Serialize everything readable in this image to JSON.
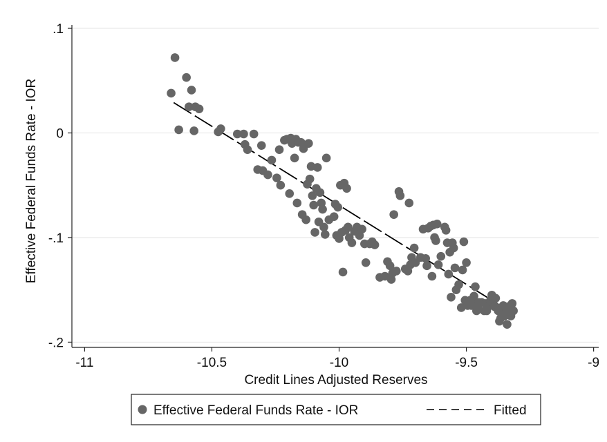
{
  "chart_data": {
    "type": "scatter",
    "xlabel": "Credit Lines Adjusted Reserves",
    "ylabel": "Effective Federal Funds Rate - IOR",
    "xlim": [
      -11.05,
      -8.98
    ],
    "ylim": [
      -0.205,
      0.102
    ],
    "x_ticks": [
      -11,
      -10.5,
      -10,
      -9.5,
      -9
    ],
    "x_tick_labels": [
      "-11",
      "-10.5",
      "-10",
      "-9.5",
      "-9"
    ],
    "y_ticks": [
      0.1,
      0,
      -0.1,
      -0.2
    ],
    "y_tick_labels": [
      ".1",
      "0",
      "-.1",
      "-.2"
    ],
    "grid": true,
    "legend_position": "bottom",
    "series": [
      {
        "name": "Effective Federal Funds Rate - IOR",
        "kind": "scatter",
        "color": "#666666",
        "points": [
          [
            -10.66,
            0.038
          ],
          [
            -10.645,
            0.072
          ],
          [
            -10.63,
            0.003
          ],
          [
            -10.6,
            0.053
          ],
          [
            -10.59,
            0.025
          ],
          [
            -10.58,
            0.041
          ],
          [
            -10.57,
            0.002
          ],
          [
            -10.565,
            0.025
          ],
          [
            -10.55,
            0.023
          ],
          [
            -10.475,
            0.001
          ],
          [
            -10.465,
            0.004
          ],
          [
            -10.4,
            -0.001
          ],
          [
            -10.375,
            -0.001
          ],
          [
            -10.37,
            -0.011
          ],
          [
            -10.36,
            -0.016
          ],
          [
            -10.335,
            -0.001
          ],
          [
            -10.32,
            -0.035
          ],
          [
            -10.305,
            -0.012
          ],
          [
            -10.3,
            -0.036
          ],
          [
            -10.28,
            -0.04
          ],
          [
            -10.265,
            -0.026
          ],
          [
            -10.245,
            -0.043
          ],
          [
            -10.235,
            -0.016
          ],
          [
            -10.23,
            -0.05
          ],
          [
            -10.215,
            -0.007
          ],
          [
            -10.205,
            -0.006
          ],
          [
            -10.195,
            -0.058
          ],
          [
            -10.19,
            -0.005
          ],
          [
            -10.185,
            -0.01
          ],
          [
            -10.175,
            -0.024
          ],
          [
            -10.17,
            -0.006
          ],
          [
            -10.165,
            -0.067
          ],
          [
            -10.16,
            -0.009
          ],
          [
            -10.15,
            -0.009
          ],
          [
            -10.145,
            -0.078
          ],
          [
            -10.14,
            -0.015
          ],
          [
            -10.13,
            -0.083
          ],
          [
            -10.125,
            -0.049
          ],
          [
            -10.12,
            -0.01
          ],
          [
            -10.115,
            -0.044
          ],
          [
            -10.11,
            -0.032
          ],
          [
            -10.105,
            -0.06
          ],
          [
            -10.1,
            -0.069
          ],
          [
            -10.095,
            -0.095
          ],
          [
            -10.09,
            -0.053
          ],
          [
            -10.085,
            -0.033
          ],
          [
            -10.08,
            -0.085
          ],
          [
            -10.075,
            -0.057
          ],
          [
            -10.07,
            -0.067
          ],
          [
            -10.065,
            -0.073
          ],
          [
            -10.06,
            -0.09
          ],
          [
            -10.055,
            -0.097
          ],
          [
            -10.05,
            -0.024
          ],
          [
            -10.04,
            -0.083
          ],
          [
            -10.02,
            -0.08
          ],
          [
            -10.015,
            -0.068
          ],
          [
            -10.01,
            -0.098
          ],
          [
            -10.005,
            -0.071
          ],
          [
            -10.0,
            -0.101
          ],
          [
            -9.995,
            -0.05
          ],
          [
            -9.99,
            -0.095
          ],
          [
            -9.985,
            -0.133
          ],
          [
            -9.98,
            -0.048
          ],
          [
            -9.975,
            -0.093
          ],
          [
            -9.97,
            -0.053
          ],
          [
            -9.965,
            -0.09
          ],
          [
            -9.96,
            -0.1
          ],
          [
            -9.95,
            -0.105
          ],
          [
            -9.94,
            -0.094
          ],
          [
            -9.93,
            -0.09
          ],
          [
            -9.92,
            -0.098
          ],
          [
            -9.91,
            -0.092
          ],
          [
            -9.9,
            -0.106
          ],
          [
            -9.895,
            -0.124
          ],
          [
            -9.88,
            -0.106
          ],
          [
            -9.87,
            -0.104
          ],
          [
            -9.86,
            -0.107
          ],
          [
            -9.84,
            -0.138
          ],
          [
            -9.82,
            -0.137
          ],
          [
            -9.81,
            -0.123
          ],
          [
            -9.8,
            -0.127
          ],
          [
            -9.795,
            -0.14
          ],
          [
            -9.79,
            -0.134
          ],
          [
            -9.785,
            -0.078
          ],
          [
            -9.775,
            -0.132
          ],
          [
            -9.765,
            -0.056
          ],
          [
            -9.76,
            -0.06
          ],
          [
            -9.74,
            -0.13
          ],
          [
            -9.73,
            -0.132
          ],
          [
            -9.725,
            -0.067
          ],
          [
            -9.72,
            -0.126
          ],
          [
            -9.715,
            -0.119
          ],
          [
            -9.705,
            -0.11
          ],
          [
            -9.7,
            -0.124
          ],
          [
            -9.68,
            -0.119
          ],
          [
            -9.67,
            -0.092
          ],
          [
            -9.66,
            -0.12
          ],
          [
            -9.655,
            -0.127
          ],
          [
            -9.65,
            -0.091
          ],
          [
            -9.64,
            -0.089
          ],
          [
            -9.635,
            -0.137
          ],
          [
            -9.63,
            -0.088
          ],
          [
            -9.625,
            -0.1
          ],
          [
            -9.62,
            -0.103
          ],
          [
            -9.615,
            -0.087
          ],
          [
            -9.61,
            -0.126
          ],
          [
            -9.6,
            -0.118
          ],
          [
            -9.585,
            -0.09
          ],
          [
            -9.58,
            -0.093
          ],
          [
            -9.575,
            -0.105
          ],
          [
            -9.57,
            -0.135
          ],
          [
            -9.565,
            -0.114
          ],
          [
            -9.56,
            -0.157
          ],
          [
            -9.555,
            -0.105
          ],
          [
            -9.55,
            -0.11
          ],
          [
            -9.545,
            -0.129
          ],
          [
            -9.54,
            -0.15
          ],
          [
            -9.53,
            -0.145
          ],
          [
            -9.52,
            -0.167
          ],
          [
            -9.515,
            -0.131
          ],
          [
            -9.51,
            -0.104
          ],
          [
            -9.505,
            -0.16
          ],
          [
            -9.5,
            -0.124
          ],
          [
            -9.495,
            -0.165
          ],
          [
            -9.49,
            -0.162
          ],
          [
            -9.485,
            -0.16
          ],
          [
            -9.48,
            -0.165
          ],
          [
            -9.475,
            -0.159
          ],
          [
            -9.47,
            -0.156
          ],
          [
            -9.465,
            -0.147
          ],
          [
            -9.46,
            -0.17
          ],
          [
            -9.455,
            -0.165
          ],
          [
            -9.45,
            -0.162
          ],
          [
            -9.44,
            -0.162
          ],
          [
            -9.43,
            -0.17
          ],
          [
            -9.425,
            -0.163
          ],
          [
            -9.42,
            -0.17
          ],
          [
            -9.41,
            -0.165
          ],
          [
            -9.405,
            -0.16
          ],
          [
            -9.4,
            -0.155
          ],
          [
            -9.395,
            -0.163
          ],
          [
            -9.39,
            -0.166
          ],
          [
            -9.385,
            -0.158
          ],
          [
            -9.38,
            -0.167
          ],
          [
            -9.375,
            -0.17
          ],
          [
            -9.37,
            -0.18
          ],
          [
            -9.365,
            -0.177
          ],
          [
            -9.36,
            -0.172
          ],
          [
            -9.355,
            -0.165
          ],
          [
            -9.35,
            -0.175
          ],
          [
            -9.345,
            -0.172
          ],
          [
            -9.34,
            -0.183
          ],
          [
            -9.335,
            -0.166
          ],
          [
            -9.33,
            -0.172
          ],
          [
            -9.325,
            -0.175
          ],
          [
            -9.32,
            -0.163
          ],
          [
            -9.315,
            -0.17
          ]
        ]
      },
      {
        "name": "Fitted",
        "kind": "line",
        "color": "#000000",
        "dash": "dashed",
        "points": [
          [
            -10.65,
            0.029
          ],
          [
            -9.32,
            -0.172
          ]
        ]
      }
    ]
  }
}
